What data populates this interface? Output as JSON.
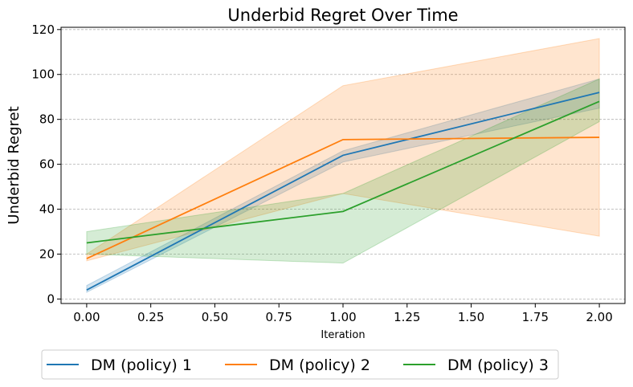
{
  "chart_data": {
    "type": "line",
    "title": "Underbid Regret Over Time",
    "xlabel": "Iteration",
    "ylabel": "Underbid Regret",
    "xlim": [
      -0.1,
      2.1
    ],
    "ylim": [
      -2,
      121
    ],
    "xticks": [
      "0.00",
      "0.25",
      "0.50",
      "0.75",
      "1.00",
      "1.25",
      "1.50",
      "1.75",
      "2.00"
    ],
    "yticks": [
      "0",
      "20",
      "40",
      "60",
      "80",
      "100",
      "120"
    ],
    "grid": "horizontal dashed",
    "legend": "bottom, outside",
    "x": [
      0,
      1,
      2
    ],
    "series": [
      {
        "name": "DM (policy) 1",
        "color": "#1f77b4",
        "values": [
          4,
          64,
          92
        ],
        "lower": [
          3,
          61,
          85
        ],
        "upper": [
          6,
          66,
          98
        ]
      },
      {
        "name": "DM (policy) 2",
        "color": "#ff7f0e",
        "values": [
          18,
          71,
          72
        ],
        "lower": [
          17,
          47,
          28
        ],
        "upper": [
          20,
          95,
          116
        ]
      },
      {
        "name": "DM (policy) 3",
        "color": "#2ca02c",
        "values": [
          25,
          39,
          88
        ],
        "lower": [
          20,
          16,
          79
        ],
        "upper": [
          30,
          47,
          98
        ]
      }
    ]
  }
}
